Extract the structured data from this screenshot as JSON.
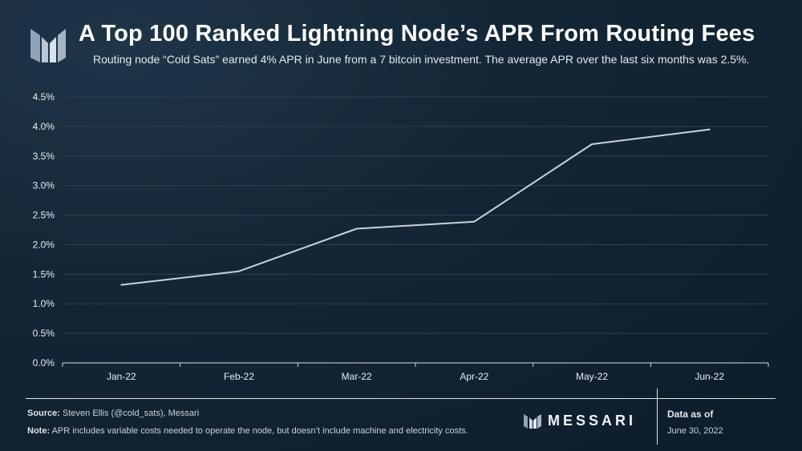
{
  "header": {
    "title": "A Top 100 Ranked Lightning Node’s APR From Routing Fees",
    "subtitle": "Routing node “Cold Sats” earned 4% APR in June from a 7 bitcoin investment. The average APR over the last six months was 2.5%.",
    "logo_icon": "messari-m-icon"
  },
  "colors": {
    "background": "#142636",
    "line": "#c9d2dc",
    "grid": "#2d4052",
    "text": "#ffffff"
  },
  "chart_data": {
    "type": "line",
    "categories": [
      "Jan-22",
      "Feb-22",
      "Mar-22",
      "Apr-22",
      "May-22",
      "Jun-22"
    ],
    "series": [
      {
        "values": [
          1.32,
          1.55,
          2.27,
          2.39,
          3.7,
          3.95
        ]
      }
    ],
    "yticks": [
      "0.0%",
      "0.5%",
      "1.0%",
      "1.5%",
      "2.0%",
      "2.5%",
      "3.0%",
      "3.5%",
      "4.0%",
      "4.5%"
    ],
    "ylim": [
      0,
      4.5
    ],
    "ylabel": "",
    "xlabel": "",
    "grid": true,
    "legend": "none"
  },
  "footer": {
    "source_label": "Source:",
    "source_text": "Steven Ellis (@cold_sats), Messari",
    "note_label": "Note:",
    "note_text": "APR includes variable costs needed to operate the node, but doesn’t include machine and electricity costs.",
    "brand_name": "MESSARI",
    "brand_icon": "messari-mark-icon",
    "asof_label": "Data as of",
    "asof_date": "June 30, 2022"
  }
}
